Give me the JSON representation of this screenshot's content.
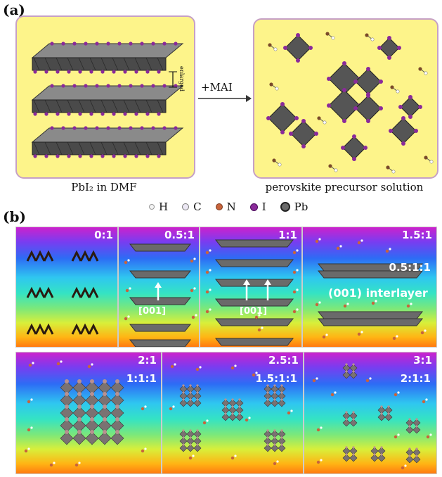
{
  "panel_a": {
    "label": "(a)",
    "left_caption": "PbI₂ in DMF",
    "right_caption": "perovskite precursor solution",
    "enlarged_label": "enlarged",
    "arrow_label": "+MAI"
  },
  "legend": [
    {
      "symbol": "H",
      "color": "#f0f0f0",
      "icon": "h-atom-icon"
    },
    {
      "symbol": "C",
      "color": "#e8e4f0",
      "icon": "c-atom-icon"
    },
    {
      "symbol": "N",
      "color": "#c8643c",
      "icon": "n-atom-icon"
    },
    {
      "symbol": "I",
      "color": "#8a2a9a",
      "icon": "i-atom-icon"
    },
    {
      "symbol": "Pb",
      "color": "#6a6a6a",
      "icon": "pb-atom-icon"
    }
  ],
  "panel_b": {
    "label": "(b)",
    "panels": [
      {
        "ratio": "0:1"
      },
      {
        "ratio": "0.5:1",
        "direction": "[001]"
      },
      {
        "ratio": "1:1",
        "direction": "[001]"
      },
      {
        "ratio": "1.5:1",
        "sub_ratio": "0.5:1:1",
        "interlayer": "(001) interlayer"
      },
      {
        "ratio": "2:1",
        "sub_ratio": "1:1:1"
      },
      {
        "ratio": "2.5:1",
        "sub_ratio": "1.5:1:1"
      },
      {
        "ratio": "3:1",
        "sub_ratio": "2:1:1"
      }
    ]
  },
  "colors": {
    "card_fill": "#fdf48a",
    "card_border": "#c6a0c6",
    "octahedron": "#555555",
    "iodide": "#8a2a9a"
  }
}
